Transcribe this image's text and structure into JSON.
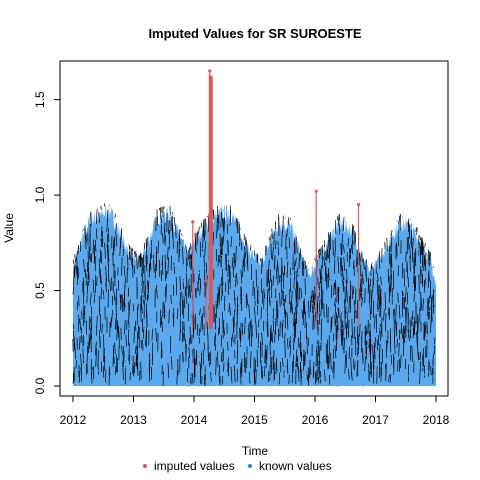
{
  "chart_data": {
    "type": "line",
    "title": "Imputed Values for  SR SUROESTE",
    "xlabel": "Time",
    "ylabel": "Value",
    "xlim": [
      2012,
      2018
    ],
    "ylim": [
      0,
      1.65
    ],
    "x_ticks": [
      "2012",
      "2013",
      "2014",
      "2015",
      "2016",
      "2017",
      "2018"
    ],
    "y_ticks": [
      "0.0",
      "0.5",
      "1.0",
      "1.5"
    ],
    "grid": false,
    "legend": "bottom",
    "series": [
      {
        "name": "known values",
        "color": "#5aa8ee",
        "seasonal_envelope": {
          "x": [
            2012.0,
            2012.25,
            2012.6,
            2012.9,
            2013.1,
            2013.4,
            2013.6,
            2013.9,
            2014.1,
            2014.4,
            2014.6,
            2014.9,
            2015.1,
            2015.4,
            2015.6,
            2015.9,
            2016.1,
            2016.4,
            2016.6,
            2016.9,
            2017.1,
            2017.4,
            2017.6,
            2017.9,
            2018.0
          ],
          "y": [
            0.65,
            0.9,
            0.97,
            0.75,
            0.68,
            0.93,
            0.95,
            0.72,
            0.85,
            0.95,
            0.96,
            0.75,
            0.67,
            0.9,
            0.88,
            0.6,
            0.73,
            0.9,
            0.86,
            0.62,
            0.72,
            0.9,
            0.87,
            0.7,
            0.55
          ],
          "min": 0.0
        }
      },
      {
        "name": "imputed values",
        "color": "#e05555",
        "points": [
          {
            "x": 2013.98,
            "y": 0.86
          },
          {
            "x": 2014.2,
            "y": 0.55
          },
          {
            "x": 2014.26,
            "y": 1.65
          },
          {
            "x": 2014.27,
            "y": 1.62
          },
          {
            "x": 2014.28,
            "y": 1.58
          },
          {
            "x": 2016.02,
            "y": 1.02
          },
          {
            "x": 2016.72,
            "y": 0.95
          }
        ]
      }
    ]
  },
  "legend": {
    "imputed_label": "imputed values",
    "known_label": "known values"
  }
}
